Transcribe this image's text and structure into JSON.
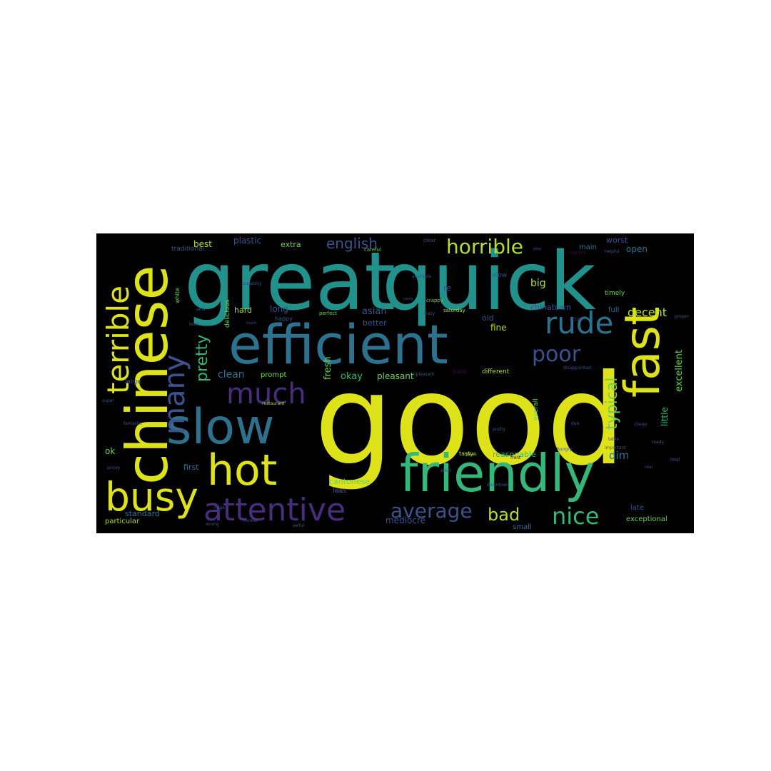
{
  "palette": {
    "yellow": "#dde318",
    "yellow_green": "#b5de2b",
    "green": "#35b779",
    "green_light": "#6ece58",
    "teal": "#21918c",
    "blue_teal": "#2c728e",
    "blue": "#3b528b",
    "purple": "#472d7b",
    "dark_purple": "#440154"
  },
  "words": [
    {
      "text": "good"
    },
    {
      "text": "great"
    },
    {
      "text": "quick"
    },
    {
      "text": "chinese"
    },
    {
      "text": "efficient"
    },
    {
      "text": "friendly"
    },
    {
      "text": "slow"
    },
    {
      "text": "fast"
    },
    {
      "text": "hot"
    },
    {
      "text": "busy"
    },
    {
      "text": "attentive"
    },
    {
      "text": "terrible"
    },
    {
      "text": "rude"
    },
    {
      "text": "many"
    },
    {
      "text": "much"
    },
    {
      "text": "horrible"
    },
    {
      "text": "poor"
    },
    {
      "text": "nice"
    },
    {
      "text": "average"
    },
    {
      "text": "typical"
    },
    {
      "text": "pretty"
    },
    {
      "text": "bad"
    },
    {
      "text": "english"
    },
    {
      "text": "decent"
    },
    {
      "text": "excellent"
    },
    {
      "text": "little"
    },
    {
      "text": "clean"
    },
    {
      "text": "fresh"
    },
    {
      "text": "okay"
    },
    {
      "text": "pleasant"
    },
    {
      "text": "asian"
    },
    {
      "text": "better"
    },
    {
      "text": "long"
    },
    {
      "text": "hard"
    },
    {
      "text": "big"
    },
    {
      "text": "fine"
    },
    {
      "text": "old"
    },
    {
      "text": "chinatown"
    },
    {
      "text": "reasonable"
    },
    {
      "text": "cantonese"
    },
    {
      "text": "less"
    },
    {
      "text": "mediocre"
    },
    {
      "text": "small"
    },
    {
      "text": "late"
    },
    {
      "text": "exceptional"
    },
    {
      "text": "dim"
    },
    {
      "text": "ok"
    },
    {
      "text": "first"
    },
    {
      "text": "standard"
    },
    {
      "text": "particular"
    },
    {
      "text": "best"
    },
    {
      "text": "plastic"
    },
    {
      "text": "extra"
    },
    {
      "text": "traditional"
    },
    {
      "text": "worst"
    },
    {
      "text": "main"
    },
    {
      "text": "open"
    },
    {
      "text": "full"
    },
    {
      "text": "overall"
    },
    {
      "text": "different"
    },
    {
      "text": "prompt"
    },
    {
      "text": "sure"
    },
    {
      "text": "large"
    },
    {
      "text": "delicious"
    },
    {
      "text": "re"
    },
    {
      "text": "timely"
    },
    {
      "text": "slow"
    },
    {
      "text": "white"
    },
    {
      "text": "happy"
    },
    {
      "text": "perfect"
    },
    {
      "text": "saturday"
    },
    {
      "text": "crappy"
    },
    {
      "text": "available"
    },
    {
      "text": "careful"
    },
    {
      "text": "clear"
    },
    {
      "text": "helpful"
    },
    {
      "text": "actual"
    },
    {
      "text": "disappointed"
    },
    {
      "text": "proper"
    },
    {
      "text": "unpleasant"
    },
    {
      "text": "real"
    },
    {
      "text": "ready"
    },
    {
      "text": "tasty"
    },
    {
      "text": "pushy"
    },
    {
      "text": "cheap"
    },
    {
      "text": "due"
    },
    {
      "text": "table"
    },
    {
      "text": "important"
    },
    {
      "text": "short"
    },
    {
      "text": "downtown"
    },
    {
      "text": "awful"
    },
    {
      "text": "honest"
    },
    {
      "text": "wrong"
    },
    {
      "text": "huge"
    },
    {
      "text": "fantastic"
    },
    {
      "text": "super"
    },
    {
      "text": "pricey"
    },
    {
      "text": "restaurant"
    },
    {
      "text": "least"
    },
    {
      "text": "able"
    },
    {
      "text": "amazing"
    },
    {
      "text": "new"
    },
    {
      "text": "nasty"
    },
    {
      "text": "peak"
    },
    {
      "text": "much"
    },
    {
      "text": "crazy"
    },
    {
      "text": "slow"
    },
    {
      "text": "crowded"
    },
    {
      "text": "hungry"
    },
    {
      "text": "real"
    },
    {
      "text": "front"
    }
  ]
}
